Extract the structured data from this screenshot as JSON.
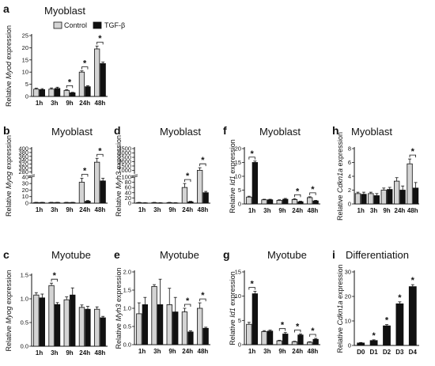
{
  "legend": {
    "control_label": "Control",
    "tgf_label": "TGF-β",
    "control_color": "#d4d4d4",
    "tgf_color": "#111111"
  },
  "chart_data": [
    {
      "id": "a",
      "type": "bar",
      "title": "Myoblast",
      "ylabel_pre": "Relative ",
      "ylabel_gene": "Myod",
      "ylabel_post": " expression",
      "categories": [
        "1h",
        "3h",
        "9h",
        "24h",
        "48h"
      ],
      "series": [
        {
          "name": "Control",
          "values": [
            3,
            3,
            2.5,
            10,
            19.5
          ],
          "errors": [
            0.4,
            0.5,
            0.3,
            0.5,
            1.2
          ]
        },
        {
          "name": "TGF-β",
          "values": [
            2.8,
            3.3,
            1.5,
            4,
            13.5
          ],
          "errors": [
            0.4,
            0.5,
            0.2,
            0.4,
            0.6
          ]
        }
      ],
      "ylim": [
        0,
        25
      ],
      "yticks": [
        0,
        5,
        10,
        15,
        20,
        25
      ],
      "significant": [
        2,
        3,
        4
      ]
    },
    {
      "id": "b",
      "type": "bar",
      "title": "Myoblast",
      "ylabel_pre": "Relative ",
      "ylabel_gene": "Myog",
      "ylabel_post": " expression",
      "categories": [
        "1h",
        "3h",
        "9h",
        "24h",
        "48h"
      ],
      "series": [
        {
          "name": "Control",
          "values": [
            1,
            1,
            1,
            32,
            330
          ],
          "errors": [
            0.3,
            0.3,
            0.3,
            6,
            20
          ]
        },
        {
          "name": "TGF-β",
          "values": [
            1,
            1,
            1,
            3,
            34
          ],
          "errors": [
            0.3,
            0.3,
            0.3,
            1,
            4
          ]
        }
      ],
      "ylim": [
        0,
        400
      ],
      "yticks": [
        0,
        10,
        20,
        30,
        40,
        280,
        300,
        320,
        340,
        360,
        380,
        400
      ],
      "axis_break": [
        40,
        270
      ],
      "significant": [
        3,
        4
      ]
    },
    {
      "id": "c",
      "type": "bar",
      "title": "Myotube",
      "ylabel_pre": "Relative ",
      "ylabel_gene": "Myog",
      "ylabel_post": " expression",
      "categories": [
        "1h",
        "3h",
        "9h",
        "24h",
        "48h"
      ],
      "series": [
        {
          "name": "Control",
          "values": [
            1.08,
            1.28,
            0.98,
            0.82,
            0.78
          ],
          "errors": [
            0.05,
            0.05,
            0.06,
            0.05,
            0.05
          ]
        },
        {
          "name": "TGF-β",
          "values": [
            1.02,
            0.88,
            1.08,
            0.78,
            0.6
          ],
          "errors": [
            0.08,
            0.04,
            0.15,
            0.06,
            0.03
          ]
        }
      ],
      "ylim": [
        0,
        1.5
      ],
      "yticks": [
        0.0,
        0.5,
        1.0,
        1.5
      ],
      "tick_decimals": 1,
      "significant": [
        1
      ]
    },
    {
      "id": "d",
      "type": "bar",
      "title": "Myoblast",
      "ylabel_pre": "Relative ",
      "ylabel_gene": "Myh3",
      "ylabel_post": " expression",
      "categories": [
        "1h",
        "3h",
        "9h",
        "24h",
        "48h"
      ],
      "series": [
        {
          "name": "Control",
          "values": [
            2,
            2,
            2,
            60,
            1000
          ],
          "errors": [
            1,
            1,
            1,
            15,
            300
          ]
        },
        {
          "name": "TGF-β",
          "values": [
            1,
            1,
            1,
            5,
            40
          ],
          "errors": [
            1,
            1,
            1,
            2,
            5
          ]
        }
      ],
      "ylim": [
        0,
        3500
      ],
      "yticks": [
        0,
        20,
        40,
        60,
        80,
        100,
        1000,
        1500,
        2000,
        2500,
        3000,
        3500
      ],
      "axis_break": [
        100,
        600
      ],
      "significant": [
        3,
        4
      ]
    },
    {
      "id": "e",
      "type": "bar",
      "title": "Myotube",
      "ylabel_pre": "Relative ",
      "ylabel_gene": "Myh3",
      "ylabel_post": " expression",
      "categories": [
        "1h",
        "3h",
        "9h",
        "24h",
        "48h"
      ],
      "series": [
        {
          "name": "Control",
          "values": [
            0.85,
            1.6,
            1.1,
            0.9,
            1.0
          ],
          "errors": [
            0.3,
            0.05,
            0.45,
            0.1,
            0.15
          ]
        },
        {
          "name": "TGF-β",
          "values": [
            1.1,
            1.1,
            0.9,
            0.35,
            0.45
          ],
          "errors": [
            0.2,
            0.7,
            0.4,
            0.03,
            0.03
          ]
        }
      ],
      "ylim": [
        0,
        2.0
      ],
      "yticks": [
        0.0,
        0.5,
        1.0,
        1.5,
        2.0
      ],
      "tick_decimals": 1,
      "significant": [
        3,
        4
      ]
    },
    {
      "id": "f",
      "type": "bar",
      "title": "Myoblast",
      "ylabel_pre": "Relative ",
      "ylabel_gene": "Id1",
      "ylabel_post": " expression",
      "categories": [
        "1h",
        "3h",
        "9h",
        "24h",
        "48h"
      ],
      "series": [
        {
          "name": "Control",
          "values": [
            2.5,
            1.5,
            1.3,
            1.6,
            2.3
          ],
          "errors": [
            0.3,
            0.2,
            0.2,
            0.3,
            0.3
          ]
        },
        {
          "name": "TGF-β",
          "values": [
            15,
            1.5,
            1.7,
            0.8,
            1.1
          ],
          "errors": [
            0.5,
            0.2,
            0.3,
            0.2,
            0.2
          ]
        }
      ],
      "ylim": [
        0,
        20
      ],
      "yticks": [
        0,
        5,
        10,
        15,
        20
      ],
      "significant": [
        0,
        3,
        4
      ]
    },
    {
      "id": "g",
      "type": "bar",
      "title": "Myotube",
      "ylabel_pre": "Relative ",
      "ylabel_gene": "Id1",
      "ylabel_post": " expression",
      "categories": [
        "1h",
        "3h",
        "9h",
        "24h",
        "48h"
      ],
      "series": [
        {
          "name": "Control",
          "values": [
            4.2,
            2.7,
            0.8,
            0.6,
            0.5
          ],
          "errors": [
            0.4,
            0.2,
            0.1,
            0.1,
            0.1
          ]
        },
        {
          "name": "TGF-β",
          "values": [
            10.5,
            2.8,
            2.2,
            2.0,
            1.1
          ],
          "errors": [
            0.5,
            0.2,
            0.3,
            0.2,
            0.2
          ]
        }
      ],
      "ylim": [
        0,
        15
      ],
      "yticks": [
        0,
        5,
        10,
        15
      ],
      "significant": [
        0,
        2,
        3,
        4
      ]
    },
    {
      "id": "h",
      "type": "bar",
      "title": "Myoblast",
      "ylabel_pre": "Relative ",
      "ylabel_gene": "Cdkn1a",
      "ylabel_post": " expression",
      "categories": [
        "1h",
        "3h",
        "9h",
        "24h",
        "48h"
      ],
      "series": [
        {
          "name": "Control",
          "values": [
            1.5,
            1.5,
            2.0,
            3.3,
            5.8
          ],
          "errors": [
            0.2,
            0.2,
            0.3,
            0.5,
            0.7
          ]
        },
        {
          "name": "TGF-β",
          "values": [
            1.4,
            1.2,
            2.1,
            2.0,
            2.3
          ],
          "errors": [
            0.3,
            0.3,
            0.3,
            0.6,
            0.8
          ]
        }
      ],
      "ylim": [
        0,
        8
      ],
      "yticks": [
        0,
        2,
        4,
        6,
        8
      ],
      "significant": [
        4
      ]
    },
    {
      "id": "i",
      "type": "bar",
      "title": "Differentiation",
      "ylabel_pre": "Relative ",
      "ylabel_gene": "Cdkn1a",
      "ylabel_post": " expression",
      "categories": [
        "D0",
        "D1",
        "D2",
        "D3",
        "D4"
      ],
      "series": [
        {
          "name": "Control",
          "values": [
            1,
            2,
            8,
            17,
            24
          ],
          "errors": [
            0.2,
            0.3,
            0.5,
            0.8,
            0.8
          ]
        }
      ],
      "ylim": [
        0,
        30
      ],
      "yticks": [
        0,
        10,
        20,
        30
      ],
      "significant_single": [
        1,
        2,
        3,
        4
      ]
    }
  ]
}
